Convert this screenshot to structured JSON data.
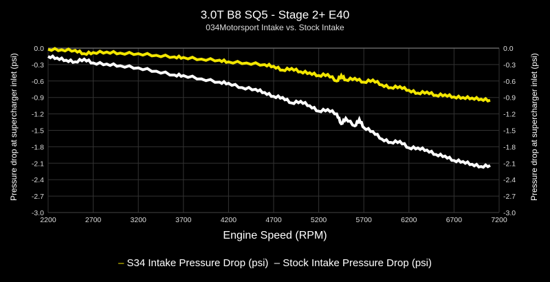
{
  "chart_data": {
    "type": "line",
    "title": "3.0T B8 SQ5 - Stage 2+ E40",
    "subtitle": "034Motorsport Intake vs. Stock Intake",
    "xlabel": "Engine Speed (RPM)",
    "ylabel": "Pressure drop at supercharger inlet (psi)",
    "ylabel_right": "Pressure drop at supercharger inlet (psi)",
    "xlim": [
      2200,
      7200
    ],
    "ylim": [
      -3.0,
      0.0
    ],
    "xticks": [
      "2200",
      "2700",
      "3200",
      "3700",
      "4200",
      "4700",
      "5200",
      "5700",
      "6200",
      "6700",
      "7200"
    ],
    "yticks": [
      "0.0",
      "-0.3",
      "-0.6",
      "-0.9",
      "-1.2",
      "-1.5",
      "-1.8",
      "-2.1",
      "-2.4",
      "-2.7",
      "-3.0"
    ],
    "grid": true,
    "legend_position": "bottom",
    "series": [
      {
        "name": "S34 Intake Pressure Drop (psi)",
        "color": "#f2e600",
        "x": [
          2200,
          2350,
          2500,
          2600,
          2700,
          2850,
          3000,
          3200,
          3400,
          3600,
          3700,
          3900,
          4100,
          4200,
          4400,
          4600,
          4700,
          4800,
          4900,
          5000,
          5100,
          5200,
          5300,
          5400,
          5450,
          5500,
          5600,
          5700,
          5800,
          5900,
          6000,
          6100,
          6200,
          6300,
          6400,
          6500,
          6600,
          6700,
          6800,
          6900,
          7000,
          7100
        ],
        "y": [
          -0.02,
          -0.03,
          -0.04,
          -0.1,
          -0.08,
          -0.07,
          -0.09,
          -0.1,
          -0.13,
          -0.16,
          -0.17,
          -0.2,
          -0.22,
          -0.25,
          -0.27,
          -0.3,
          -0.33,
          -0.4,
          -0.37,
          -0.43,
          -0.45,
          -0.5,
          -0.48,
          -0.6,
          -0.5,
          -0.58,
          -0.55,
          -0.62,
          -0.58,
          -0.67,
          -0.72,
          -0.7,
          -0.77,
          -0.82,
          -0.8,
          -0.86,
          -0.85,
          -0.89,
          -0.9,
          -0.91,
          -0.93,
          -0.95
        ]
      },
      {
        "name": "Stock Intake Pressure Drop (psi)",
        "color": "#ffffff",
        "x": [
          2200,
          2300,
          2400,
          2500,
          2600,
          2700,
          2850,
          3000,
          3200,
          3400,
          3600,
          3700,
          3900,
          4100,
          4200,
          4350,
          4500,
          4600,
          4700,
          4800,
          4900,
          5000,
          5100,
          5200,
          5300,
          5400,
          5450,
          5500,
          5600,
          5650,
          5700,
          5800,
          5900,
          6000,
          6100,
          6200,
          6300,
          6400,
          6500,
          6600,
          6700,
          6800,
          6900,
          7000,
          7100
        ],
        "y": [
          -0.15,
          -0.18,
          -0.22,
          -0.25,
          -0.2,
          -0.27,
          -0.29,
          -0.32,
          -0.36,
          -0.42,
          -0.49,
          -0.5,
          -0.56,
          -0.62,
          -0.64,
          -0.72,
          -0.75,
          -0.81,
          -0.88,
          -0.9,
          -1.0,
          -0.97,
          -1.05,
          -1.15,
          -1.12,
          -1.2,
          -1.38,
          -1.28,
          -1.42,
          -1.3,
          -1.45,
          -1.52,
          -1.66,
          -1.72,
          -1.7,
          -1.82,
          -1.82,
          -1.86,
          -1.94,
          -1.97,
          -2.05,
          -2.07,
          -2.12,
          -2.16,
          -2.14
        ]
      }
    ]
  }
}
